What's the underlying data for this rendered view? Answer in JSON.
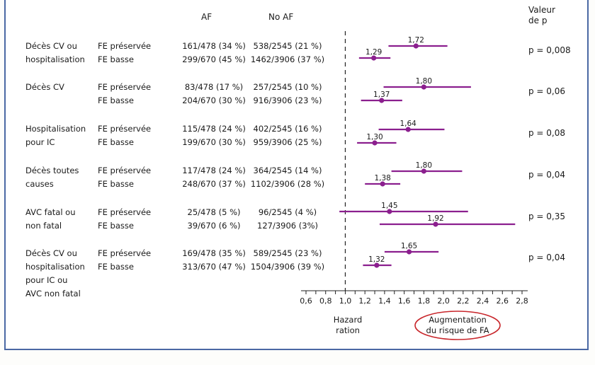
{
  "headers": {
    "af": "AF",
    "no_af": "No AF",
    "pvalue_line1": "Valeur",
    "pvalue_line2": "de p"
  },
  "groups": [
    {
      "outcome_lines": [
        "Décès CV ou",
        "hospitalisation"
      ],
      "rows": [
        {
          "subgroup": "FE préservée",
          "af": "161/478 (34 %)",
          "no_af": "538/2545 (21 %)"
        },
        {
          "subgroup": "FE basse",
          "af": "299/670 (45 %)",
          "no_af": "1462/3906 (37 %)"
        }
      ],
      "p_value": "p = 0,008"
    },
    {
      "outcome_lines": [
        "Décès CV"
      ],
      "rows": [
        {
          "subgroup": "FE préservée",
          "af": "83/478 (17 %)",
          "no_af": "257/2545 (10 %)"
        },
        {
          "subgroup": "FE basse",
          "af": "204/670 (30 %)",
          "no_af": "916/3906 (23 %)"
        }
      ],
      "p_value": "p = 0,06"
    },
    {
      "outcome_lines": [
        "Hospitalisation",
        "pour IC"
      ],
      "rows": [
        {
          "subgroup": "FE préservée",
          "af": "115/478 (24 %)",
          "no_af": "402/2545 (16 %)"
        },
        {
          "subgroup": "FE basse",
          "af": "199/670 (30 %)",
          "no_af": "959/3906 (25 %)"
        }
      ],
      "p_value": "p = 0,08"
    },
    {
      "outcome_lines": [
        "Décès toutes",
        "causes"
      ],
      "rows": [
        {
          "subgroup": "FE préservée",
          "af": "117/478 (24 %)",
          "no_af": "364/2545 (14 %)"
        },
        {
          "subgroup": "FE basse",
          "af": "248/670 (37 %)",
          "no_af": "1102/3906 (28 %)"
        }
      ],
      "p_value": "p = 0,04"
    },
    {
      "outcome_lines": [
        "AVC fatal ou",
        "non fatal"
      ],
      "rows": [
        {
          "subgroup": "FE préservée",
          "af": "25/478 (5 %)",
          "no_af": "96/2545 (4 %)"
        },
        {
          "subgroup": "FE basse",
          "af": "39/670 (6 %)",
          "no_af": "127/3906 (3%)"
        }
      ],
      "p_value": "p = 0,35"
    },
    {
      "outcome_lines": [
        "Décès CV ou",
        "hospitalisation",
        "pour IC ou",
        "AVC non fatal"
      ],
      "rows": [
        {
          "subgroup": "FE préservée",
          "af": "169/478 (35 %)",
          "no_af": "589/2545 (23 %)"
        },
        {
          "subgroup": "FE basse",
          "af": "313/670 (47 %)",
          "no_af": "1504/3906 (39 %)"
        }
      ],
      "p_value": "p = 0,04"
    }
  ],
  "chart_data": {
    "type": "forest",
    "xlabel": "Hazard ration",
    "annotation": "Augmentation du risque de FA",
    "reference_line": 1.0,
    "xlim": [
      0.6,
      2.8
    ],
    "xticks": [
      "0,6",
      "0,8",
      "1,0",
      "1,2",
      "1,4",
      "1,6",
      "1,8",
      "2,0",
      "2,2",
      "2,4",
      "2,6",
      "2,8"
    ],
    "xtick_values": [
      0.6,
      0.8,
      1.0,
      1.2,
      1.4,
      1.6,
      1.8,
      2.0,
      2.2,
      2.4,
      2.6,
      2.8
    ],
    "series": [
      {
        "group": "Décès CV ou hospitalisation",
        "subgroup": "FE préservée",
        "hr": 1.72,
        "label": "1,72",
        "ci": [
          1.44,
          2.04
        ]
      },
      {
        "group": "Décès CV ou hospitalisation",
        "subgroup": "FE basse",
        "hr": 1.29,
        "label": "1,29",
        "ci": [
          1.14,
          1.46
        ]
      },
      {
        "group": "Décès CV",
        "subgroup": "FE préservée",
        "hr": 1.8,
        "label": "1,80",
        "ci": [
          1.39,
          2.28
        ]
      },
      {
        "group": "Décès CV",
        "subgroup": "FE basse",
        "hr": 1.37,
        "label": "1,37",
        "ci": [
          1.16,
          1.58
        ]
      },
      {
        "group": "Hospitalisation pour IC",
        "subgroup": "FE préservée",
        "hr": 1.64,
        "label": "1,64",
        "ci": [
          1.34,
          2.01
        ]
      },
      {
        "group": "Hospitalisation pour IC",
        "subgroup": "FE basse",
        "hr": 1.3,
        "label": "1,30",
        "ci": [
          1.12,
          1.52
        ]
      },
      {
        "group": "Décès toutes causes",
        "subgroup": "FE préservée",
        "hr": 1.8,
        "label": "1,80",
        "ci": [
          1.47,
          2.19
        ]
      },
      {
        "group": "Décès toutes causes",
        "subgroup": "FE basse",
        "hr": 1.38,
        "label": "1,38",
        "ci": [
          1.2,
          1.56
        ]
      },
      {
        "group": "AVC fatal ou non fatal",
        "subgroup": "FE préservée",
        "hr": 1.45,
        "label": "1,45",
        "ci": [
          0.94,
          2.25
        ]
      },
      {
        "group": "AVC fatal ou non fatal",
        "subgroup": "FE basse",
        "hr": 1.92,
        "label": "1,92",
        "ci": [
          1.35,
          2.73
        ]
      },
      {
        "group": "Décès CV ou hospitalisation pour IC ou AVC non fatal",
        "subgroup": "FE préservée",
        "hr": 1.65,
        "label": "1,65",
        "ci": [
          1.4,
          1.95
        ]
      },
      {
        "group": "Décès CV ou hospitalisation pour IC ou AVC non fatal",
        "subgroup": "FE basse",
        "hr": 1.32,
        "label": "1,32",
        "ci": [
          1.18,
          1.47
        ]
      }
    ],
    "colors": {
      "marker": "#8b1f8e",
      "frame": "#4a68a4",
      "annotation_ellipse": "#c8262b"
    }
  }
}
